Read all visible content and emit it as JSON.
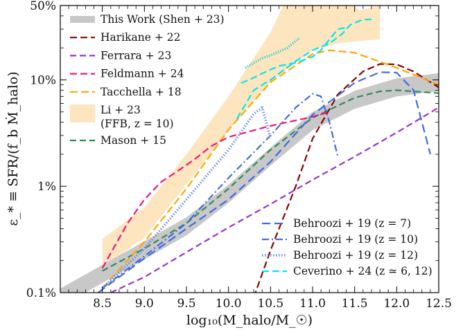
{
  "chart_data": {
    "type": "line",
    "xlabel": "log₁₀(M_halo/M_☉)",
    "ylabel": "ε_* ≡ SFR/(f_b Ṁ_halo)",
    "y_scale": "log",
    "xlim": [
      8.0,
      12.5
    ],
    "ylim": [
      0.001,
      0.5
    ],
    "x_ticks": [
      {
        "value": 8.5,
        "label": "8.5"
      },
      {
        "value": 9.0,
        "label": "9.0"
      },
      {
        "value": 9.5,
        "label": "9.5"
      },
      {
        "value": 10.0,
        "label": "10.0"
      },
      {
        "value": 10.5,
        "label": "10.5"
      },
      {
        "value": 11.0,
        "label": "11.0"
      },
      {
        "value": 11.5,
        "label": "11.5"
      },
      {
        "value": 12.0,
        "label": "12.0"
      },
      {
        "value": 12.5,
        "label": "12.5"
      }
    ],
    "y_ticks": [
      {
        "value": 0.001,
        "label": "0.1%"
      },
      {
        "value": 0.01,
        "label": "1%"
      },
      {
        "value": 0.1,
        "label": "10%"
      },
      {
        "value": 0.5,
        "label": "50%"
      }
    ],
    "legend_upper_left": [
      {
        "key": "shen",
        "label": "This Work (Shen + 23)",
        "style": "band",
        "color": "#c8c8c8"
      },
      {
        "key": "harikane",
        "label": "Harikane + 22",
        "style": "dashed",
        "color": "#8b0000"
      },
      {
        "key": "ferrara",
        "label": "Ferrara + 23",
        "style": "dashed",
        "color": "#9932cc"
      },
      {
        "key": "feldmann",
        "label": "Feldmann + 24",
        "style": "dashed",
        "color": "#f0147a"
      },
      {
        "key": "tacchella",
        "label": "Tacchella + 18",
        "style": "dashed",
        "color": "#ffa500"
      },
      {
        "key": "li",
        "label": "Li + 23",
        "label2": "(FFB, z = 10)",
        "style": "fill",
        "color": "#fde5bf"
      },
      {
        "key": "mason",
        "label": "Mason + 15",
        "style": "dashed",
        "color": "#2e8b57"
      }
    ],
    "legend_lower_right": [
      {
        "key": "behroozi7",
        "label": "Behroozi + 19 (z = 7)",
        "style": "dashed",
        "color": "#4169e1"
      },
      {
        "key": "behroozi10",
        "label": "Behroozi + 19 (z = 10)",
        "style": "dashdot",
        "color": "#4169e1"
      },
      {
        "key": "behroozi12",
        "label": "Behroozi + 19 (z = 12)",
        "style": "dotted",
        "color": "#6a8ee8"
      },
      {
        "key": "ceverino",
        "label": "Ceverino + 24 (z ≃ 6, 12)",
        "style": "dashed",
        "color": "#00e5ee"
      }
    ],
    "series": [
      {
        "key": "li",
        "type": "fill",
        "color": "#fde5bf",
        "upper": [
          [
            8.5,
            0.0032
          ],
          [
            9.0,
            0.0063
          ],
          [
            9.5,
            0.02
          ],
          [
            10.0,
            0.07
          ],
          [
            10.3,
            0.16
          ],
          [
            10.5,
            0.28
          ],
          [
            10.65,
            0.5
          ],
          [
            11.5,
            0.5
          ],
          [
            11.55,
            0.45
          ],
          [
            11.8,
            0.5
          ]
        ],
        "lower": [
          [
            8.5,
            0.0017
          ],
          [
            9.0,
            0.0033
          ],
          [
            9.5,
            0.0105
          ],
          [
            10.0,
            0.033
          ],
          [
            10.5,
            0.096
          ],
          [
            11.0,
            0.19
          ],
          [
            11.3,
            0.22
          ],
          [
            11.5,
            0.23
          ],
          [
            11.8,
            0.24
          ]
        ]
      },
      {
        "key": "shen",
        "type": "band",
        "color": "#c8c8c8",
        "points": [
          [
            8.0,
            0.0009
          ],
          [
            8.5,
            0.0015
          ],
          [
            9.0,
            0.0025
          ],
          [
            9.5,
            0.0042
          ],
          [
            10.0,
            0.0085
          ],
          [
            10.5,
            0.019
          ],
          [
            11.0,
            0.041
          ],
          [
            11.5,
            0.065
          ],
          [
            12.0,
            0.085
          ],
          [
            12.5,
            0.095
          ]
        ],
        "halfwidth_dex": 0.085
      },
      {
        "key": "ferrara",
        "type": "line",
        "dash": "9,5",
        "color": "#9932cc",
        "points": [
          [
            8.6,
            0.001
          ],
          [
            9.0,
            0.0014
          ],
          [
            9.5,
            0.0024
          ],
          [
            10.0,
            0.0041
          ],
          [
            10.5,
            0.0068
          ],
          [
            11.0,
            0.0115
          ],
          [
            11.5,
            0.019
          ],
          [
            12.0,
            0.032
          ],
          [
            12.5,
            0.055
          ]
        ]
      },
      {
        "key": "mason",
        "type": "line",
        "dash": "9,5",
        "color": "#2e8b57",
        "points": [
          [
            8.5,
            0.0016
          ],
          [
            9.0,
            0.0026
          ],
          [
            9.5,
            0.0045
          ],
          [
            10.0,
            0.0095
          ],
          [
            10.5,
            0.022
          ],
          [
            11.0,
            0.044
          ],
          [
            11.5,
            0.068
          ],
          [
            11.8,
            0.078
          ],
          [
            12.0,
            0.08
          ],
          [
            12.5,
            0.075
          ]
        ]
      },
      {
        "key": "harikane",
        "type": "line",
        "dash": "10,5",
        "color": "#8b0000",
        "points": [
          [
            10.3,
            0.0009
          ],
          [
            10.5,
            0.0025
          ],
          [
            10.8,
            0.01
          ],
          [
            11.0,
            0.028
          ],
          [
            11.3,
            0.073
          ],
          [
            11.6,
            0.12
          ],
          [
            11.8,
            0.141
          ],
          [
            12.0,
            0.14
          ],
          [
            12.2,
            0.12
          ],
          [
            12.5,
            0.085
          ]
        ]
      },
      {
        "key": "tacchella",
        "type": "line",
        "dash": "11,5",
        "color": "#ffa500",
        "points": [
          [
            8.5,
            0.0011
          ],
          [
            9.0,
            0.003
          ],
          [
            9.5,
            0.0095
          ],
          [
            10.0,
            0.034
          ],
          [
            10.5,
            0.095
          ],
          [
            11.0,
            0.175
          ],
          [
            11.2,
            0.19
          ],
          [
            11.5,
            0.18
          ],
          [
            12.0,
            0.13
          ],
          [
            12.5,
            0.09
          ]
        ]
      },
      {
        "key": "feldmann",
        "type": "line",
        "dash": "10,5",
        "color": "#f0147a",
        "points": [
          [
            8.5,
            0.0017
          ],
          [
            8.8,
            0.0045
          ],
          [
            9.0,
            0.0075
          ],
          [
            9.2,
            0.011
          ],
          [
            9.4,
            0.014
          ],
          [
            9.6,
            0.018
          ],
          [
            9.8,
            0.024
          ],
          [
            10.0,
            0.029
          ],
          [
            10.5,
            0.037
          ],
          [
            11.0,
            0.045
          ],
          [
            11.2,
            0.05
          ]
        ]
      },
      {
        "key": "behroozi7",
        "type": "line",
        "dash": "12,6",
        "color": "#4169e1",
        "points": [
          [
            8.45,
            0.001
          ],
          [
            9.0,
            0.0021
          ],
          [
            9.5,
            0.004
          ],
          [
            10.0,
            0.0075
          ],
          [
            10.5,
            0.017
          ],
          [
            11.0,
            0.047
          ],
          [
            11.5,
            0.094
          ],
          [
            11.8,
            0.118
          ],
          [
            12.0,
            0.117
          ],
          [
            12.2,
            0.08
          ],
          [
            12.4,
            0.02
          ]
        ]
      },
      {
        "key": "behroozi10",
        "type": "line",
        "dash": "10,4,2,4",
        "color": "#4169e1",
        "points": [
          [
            8.5,
            0.0011
          ],
          [
            9.0,
            0.0022
          ],
          [
            9.5,
            0.0045
          ],
          [
            10.0,
            0.012
          ],
          [
            10.5,
            0.03
          ],
          [
            10.8,
            0.055
          ],
          [
            11.0,
            0.074
          ],
          [
            11.1,
            0.07
          ],
          [
            11.2,
            0.04
          ],
          [
            11.3,
            0.019
          ]
        ]
      },
      {
        "key": "behroozi12",
        "type": "line",
        "dash": "1.5,2.5",
        "width": 3.6,
        "color": "#6a8ee8",
        "points": [
          [
            8.5,
            0.0011
          ],
          [
            9.0,
            0.0026
          ],
          [
            9.5,
            0.0075
          ],
          [
            10.0,
            0.022
          ],
          [
            10.3,
            0.048
          ],
          [
            10.4,
            0.055
          ],
          [
            10.45,
            0.04
          ],
          [
            10.5,
            0.028
          ]
        ]
      },
      {
        "key": "ceverino",
        "type": "line",
        "dash": "10,5",
        "color": "#00e5ee",
        "points": [
          [
            10.1,
            0.043
          ],
          [
            10.3,
            0.08
          ],
          [
            10.5,
            0.1
          ],
          [
            10.8,
            0.15
          ],
          [
            11.0,
            0.19
          ],
          [
            11.2,
            0.22
          ],
          [
            11.35,
            0.27
          ],
          [
            11.45,
            0.33
          ],
          [
            11.6,
            0.37
          ],
          [
            11.7,
            0.37
          ]
        ]
      },
      {
        "key": "ceverino_z12",
        "type": "line",
        "dash": "1.5,2",
        "width": 3.6,
        "color": "#48d1cc",
        "points": [
          [
            10.2,
            0.13
          ],
          [
            10.4,
            0.16
          ],
          [
            10.5,
            0.17
          ],
          [
            10.7,
            0.2
          ],
          [
            10.85,
            0.25
          ]
        ]
      },
      {
        "key": "ceverino_z6_ext",
        "type": "line",
        "dash": "10,5",
        "color": "#00e5ee",
        "points": [
          [
            10.15,
            0.093
          ],
          [
            10.3,
            0.105
          ],
          [
            10.45,
            0.12
          ],
          [
            10.6,
            0.135
          ],
          [
            10.8,
            0.145
          ],
          [
            11.0,
            0.165
          ],
          [
            11.1,
            0.19
          ],
          [
            11.2,
            0.24
          ],
          [
            11.3,
            0.3
          ],
          [
            11.4,
            0.31
          ]
        ]
      }
    ]
  }
}
